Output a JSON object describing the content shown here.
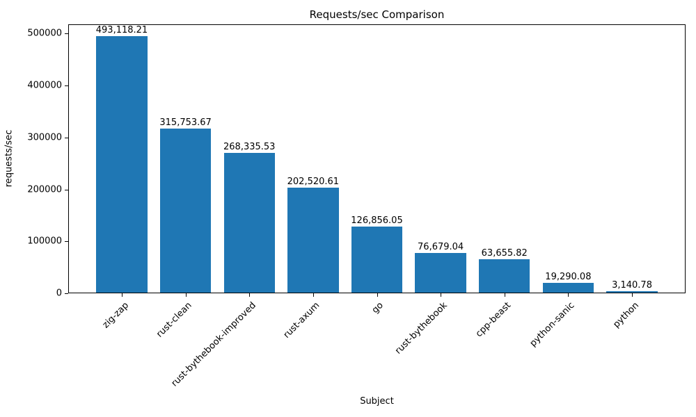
{
  "chart_data": {
    "type": "bar",
    "title": "Requests/sec Comparison",
    "xlabel": "Subject",
    "ylabel": "requests/sec",
    "categories": [
      "zig-zap",
      "rust-clean",
      "rust-bythebook-improved",
      "rust-axum",
      "go",
      "rust-bythebook",
      "cpp-beast",
      "python-sanic",
      "python"
    ],
    "values": [
      493118.21,
      315753.67,
      268335.53,
      202520.61,
      126856.05,
      76679.04,
      63655.82,
      19290.08,
      3140.78
    ],
    "value_labels": [
      "493,118.21",
      "315,753.67",
      "268,335.53",
      "202,520.61",
      "126,856.05",
      "76,679.04",
      "63,655.82",
      "19,290.08",
      "3,140.78"
    ],
    "ylim": [
      0,
      500000
    ],
    "yticks": [
      0,
      100000,
      200000,
      300000,
      400000,
      500000
    ],
    "ytick_labels": [
      "0",
      "100000",
      "200000",
      "300000",
      "400000",
      "500000"
    ],
    "bar_color": "#1f77b4",
    "axis_color": "#000000",
    "background_color": "#ffffff",
    "grid": false,
    "legend": "none",
    "x_tick_rotation_deg": 45
  }
}
